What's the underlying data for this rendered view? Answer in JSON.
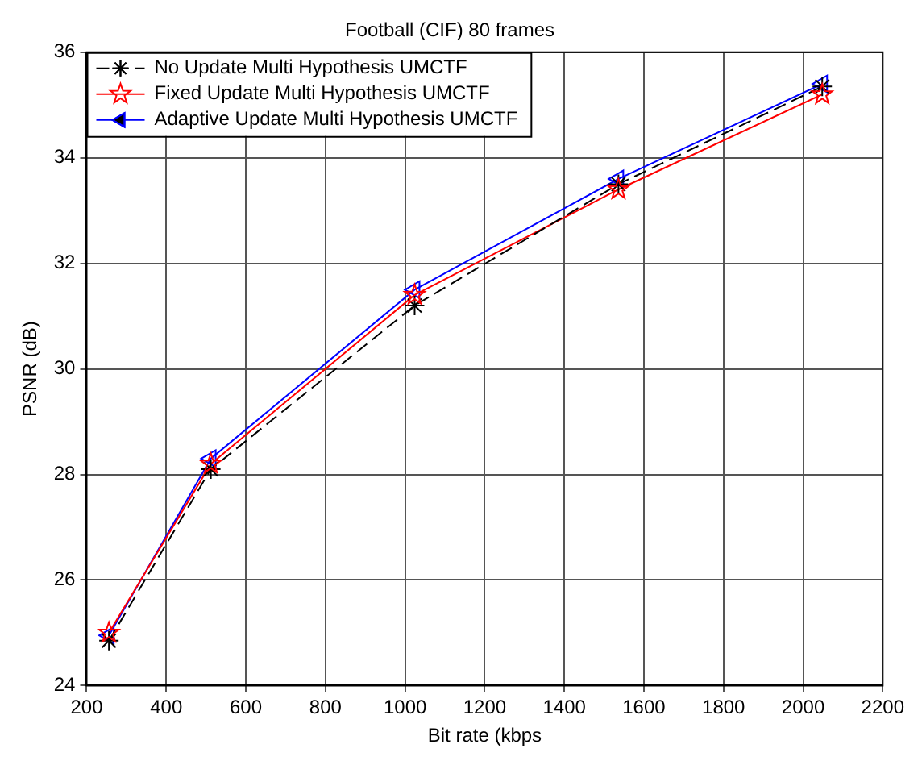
{
  "chart_data": {
    "type": "line",
    "title": "Football (CIF) 80 frames",
    "xlabel": "Bit rate (kbps",
    "ylabel": "PSNR (dB)",
    "x": [
      256,
      512,
      1024,
      1536,
      2048
    ],
    "series": [
      {
        "name": "No Update Multi Hypothesis UMCTF",
        "color": "#000000",
        "values": [
          24.85,
          28.1,
          31.2,
          33.5,
          35.35
        ],
        "marker": "cross",
        "line_style": "dashed"
      },
      {
        "name": "Fixed Update Multi Hypothesis UMCTF",
        "color": "#ff0000",
        "values": [
          25.0,
          28.2,
          31.4,
          33.4,
          35.2
        ],
        "marker": "star",
        "line_style": "solid"
      },
      {
        "name": "Adaptive Update Multi Hypothesis UMCTF",
        "color": "#0000ff",
        "values": [
          24.95,
          28.3,
          31.5,
          33.6,
          35.4
        ],
        "marker": "triangle",
        "line_style": "solid"
      }
    ],
    "xlim": [
      200,
      2200
    ],
    "xticks": [
      200,
      400,
      600,
      800,
      1000,
      1200,
      1400,
      1600,
      1800,
      2000,
      2200
    ],
    "ylim": [
      24,
      36
    ],
    "yticks": [
      24,
      26,
      28,
      30,
      32,
      34,
      36
    ],
    "grid": true,
    "legend": "top left"
  }
}
